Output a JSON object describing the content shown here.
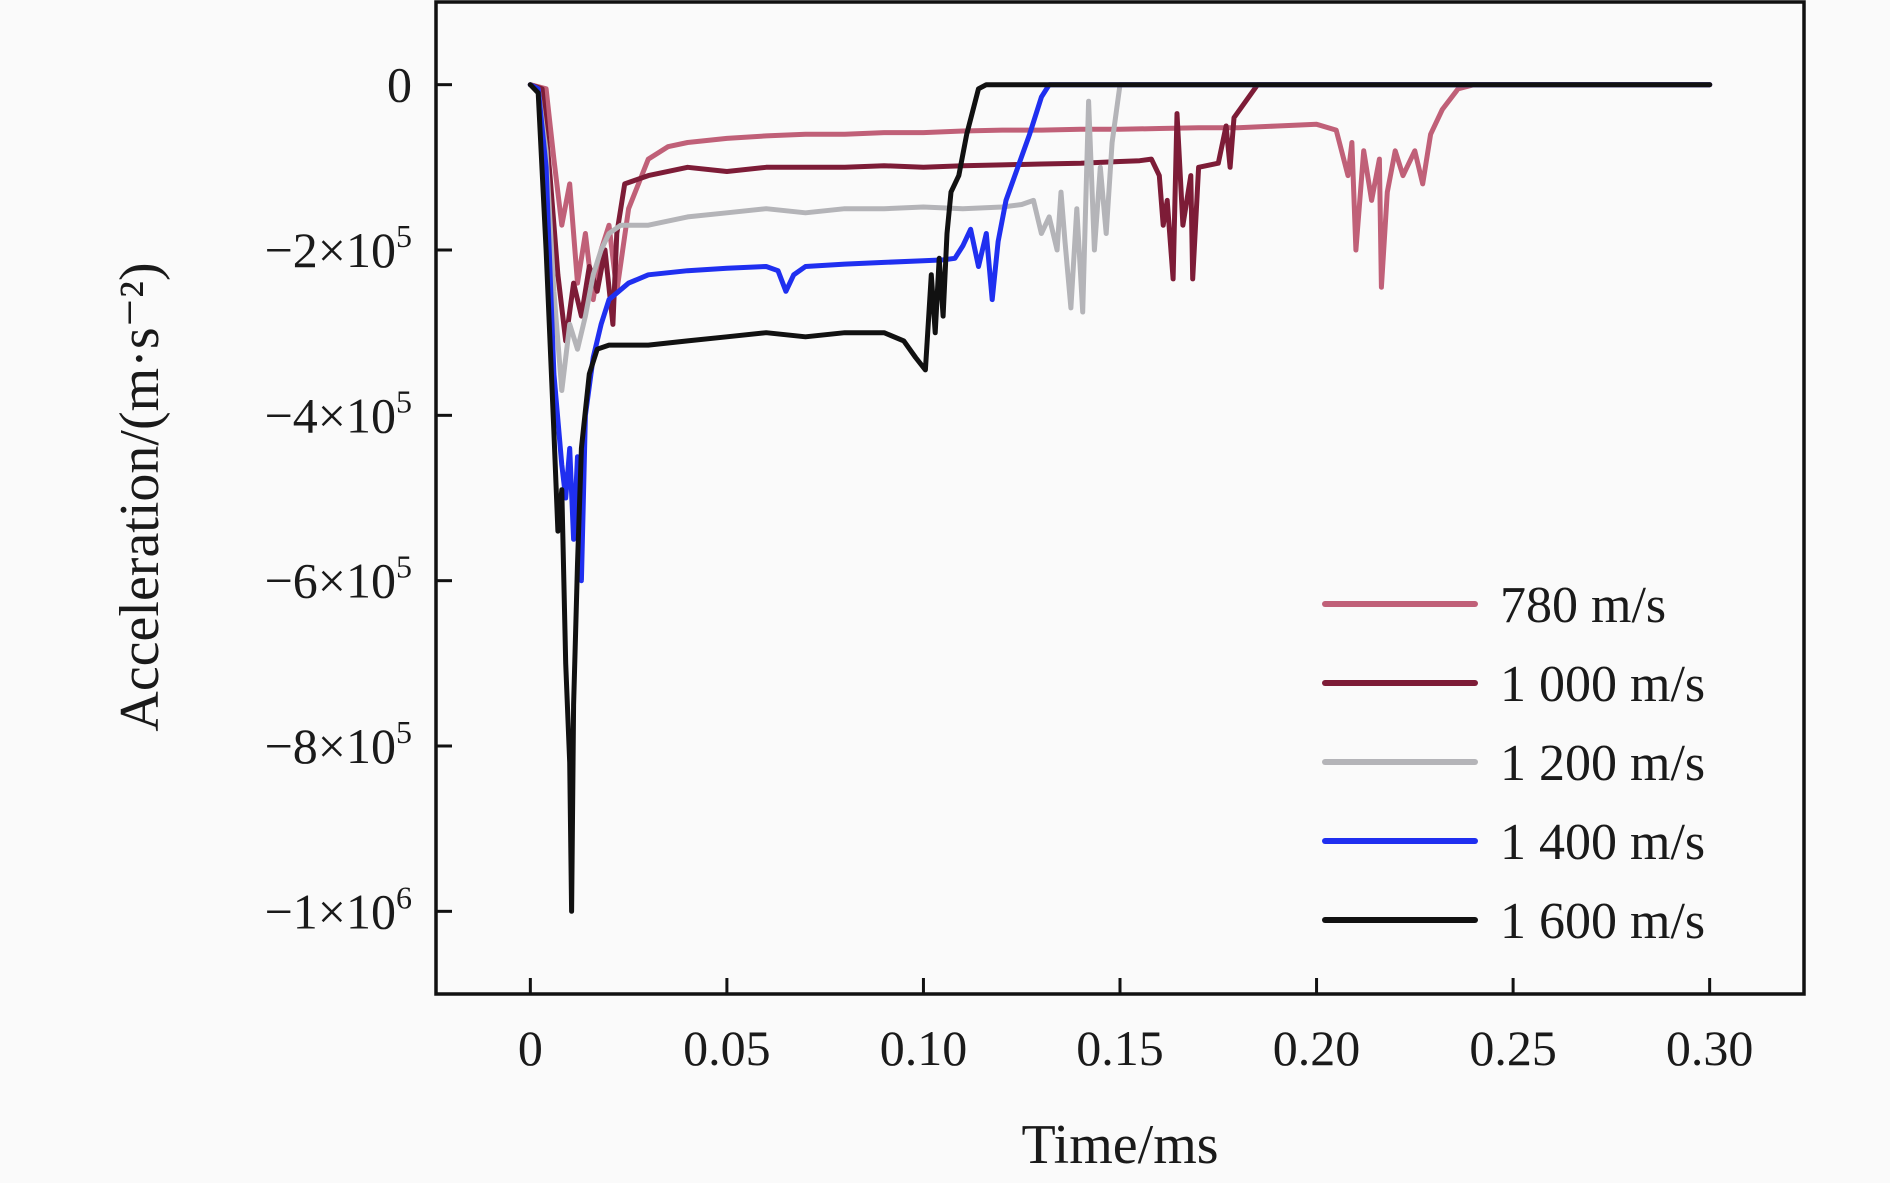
{
  "chart_data": {
    "type": "line",
    "xlabel": "Time/ms",
    "ylabel": "Acceleration/(m·s⁻²)",
    "xlim": [
      -0.024,
      0.324
    ],
    "ylim": [
      -1100000,
      100000
    ],
    "x_ticks": [
      {
        "value": 0,
        "label": "0"
      },
      {
        "value": 0.05,
        "label": "0.05"
      },
      {
        "value": 0.1,
        "label": "0.10"
      },
      {
        "value": 0.15,
        "label": "0.15"
      },
      {
        "value": 0.2,
        "label": "0.20"
      },
      {
        "value": 0.25,
        "label": "0.25"
      },
      {
        "value": 0.3,
        "label": "0.30"
      }
    ],
    "y_ticks": [
      {
        "value": 0,
        "label": "0"
      },
      {
        "value": -200000,
        "label": "−2×10",
        "exp": "5"
      },
      {
        "value": -400000,
        "label": "−4×10",
        "exp": "5"
      },
      {
        "value": -600000,
        "label": "−6×10",
        "exp": "5"
      },
      {
        "value": -800000,
        "label": "−8×10",
        "exp": "5"
      },
      {
        "value": -1000000,
        "label": "−1×10",
        "exp": "6"
      }
    ],
    "legend_position": "bottom-right",
    "grid": false,
    "series": [
      {
        "name": "780 m/s",
        "color": "#c06078",
        "points": [
          [
            0,
            0
          ],
          [
            0.004,
            -5000
          ],
          [
            0.006,
            -90000
          ],
          [
            0.008,
            -170000
          ],
          [
            0.01,
            -120000
          ],
          [
            0.012,
            -240000
          ],
          [
            0.014,
            -180000
          ],
          [
            0.016,
            -260000
          ],
          [
            0.018,
            -200000
          ],
          [
            0.02,
            -170000
          ],
          [
            0.022,
            -250000
          ],
          [
            0.025,
            -150000
          ],
          [
            0.03,
            -90000
          ],
          [
            0.035,
            -75000
          ],
          [
            0.04,
            -70000
          ],
          [
            0.05,
            -65000
          ],
          [
            0.06,
            -62000
          ],
          [
            0.07,
            -60000
          ],
          [
            0.08,
            -60000
          ],
          [
            0.09,
            -58000
          ],
          [
            0.1,
            -58000
          ],
          [
            0.11,
            -56000
          ],
          [
            0.12,
            -55000
          ],
          [
            0.13,
            -55000
          ],
          [
            0.14,
            -54000
          ],
          [
            0.15,
            -54000
          ],
          [
            0.16,
            -53000
          ],
          [
            0.17,
            -52000
          ],
          [
            0.18,
            -52000
          ],
          [
            0.19,
            -50000
          ],
          [
            0.2,
            -48000
          ],
          [
            0.205,
            -55000
          ],
          [
            0.208,
            -110000
          ],
          [
            0.209,
            -70000
          ],
          [
            0.21,
            -200000
          ],
          [
            0.212,
            -80000
          ],
          [
            0.214,
            -140000
          ],
          [
            0.216,
            -90000
          ],
          [
            0.2165,
            -245000
          ],
          [
            0.218,
            -130000
          ],
          [
            0.22,
            -80000
          ],
          [
            0.222,
            -110000
          ],
          [
            0.225,
            -80000
          ],
          [
            0.227,
            -120000
          ],
          [
            0.229,
            -60000
          ],
          [
            0.232,
            -30000
          ],
          [
            0.236,
            -5000
          ],
          [
            0.24,
            0
          ],
          [
            0.3,
            0
          ]
        ]
      },
      {
        "name": "1 000 m/s",
        "color": "#7d1c37",
        "points": [
          [
            0,
            0
          ],
          [
            0.003,
            -5000
          ],
          [
            0.005,
            -110000
          ],
          [
            0.007,
            -230000
          ],
          [
            0.009,
            -310000
          ],
          [
            0.011,
            -240000
          ],
          [
            0.013,
            -280000
          ],
          [
            0.015,
            -220000
          ],
          [
            0.017,
            -250000
          ],
          [
            0.019,
            -200000
          ],
          [
            0.021,
            -290000
          ],
          [
            0.022,
            -180000
          ],
          [
            0.024,
            -120000
          ],
          [
            0.03,
            -110000
          ],
          [
            0.04,
            -100000
          ],
          [
            0.05,
            -105000
          ],
          [
            0.06,
            -100000
          ],
          [
            0.07,
            -100000
          ],
          [
            0.08,
            -100000
          ],
          [
            0.09,
            -98000
          ],
          [
            0.1,
            -100000
          ],
          [
            0.11,
            -98000
          ],
          [
            0.12,
            -97000
          ],
          [
            0.13,
            -96000
          ],
          [
            0.14,
            -95000
          ],
          [
            0.15,
            -93000
          ],
          [
            0.155,
            -92000
          ],
          [
            0.158,
            -90000
          ],
          [
            0.16,
            -110000
          ],
          [
            0.161,
            -170000
          ],
          [
            0.162,
            -140000
          ],
          [
            0.1635,
            -235000
          ],
          [
            0.1645,
            -35000
          ],
          [
            0.166,
            -170000
          ],
          [
            0.168,
            -110000
          ],
          [
            0.1685,
            -235000
          ],
          [
            0.17,
            -100000
          ],
          [
            0.175,
            -95000
          ],
          [
            0.177,
            -50000
          ],
          [
            0.178,
            -100000
          ],
          [
            0.179,
            -40000
          ],
          [
            0.182,
            -20000
          ],
          [
            0.185,
            0
          ],
          [
            0.3,
            0
          ]
        ]
      },
      {
        "name": "1 200 m/s",
        "color": "#b4b4b8",
        "points": [
          [
            0,
            0
          ],
          [
            0.002,
            -5000
          ],
          [
            0.004,
            -80000
          ],
          [
            0.006,
            -250000
          ],
          [
            0.008,
            -370000
          ],
          [
            0.01,
            -290000
          ],
          [
            0.012,
            -320000
          ],
          [
            0.014,
            -280000
          ],
          [
            0.016,
            -230000
          ],
          [
            0.018,
            -200000
          ],
          [
            0.02,
            -180000
          ],
          [
            0.023,
            -170000
          ],
          [
            0.03,
            -170000
          ],
          [
            0.04,
            -160000
          ],
          [
            0.05,
            -155000
          ],
          [
            0.06,
            -150000
          ],
          [
            0.07,
            -155000
          ],
          [
            0.08,
            -150000
          ],
          [
            0.09,
            -150000
          ],
          [
            0.1,
            -148000
          ],
          [
            0.11,
            -150000
          ],
          [
            0.12,
            -148000
          ],
          [
            0.125,
            -145000
          ],
          [
            0.128,
            -140000
          ],
          [
            0.13,
            -180000
          ],
          [
            0.132,
            -160000
          ],
          [
            0.134,
            -200000
          ],
          [
            0.135,
            -130000
          ],
          [
            0.136,
            -190000
          ],
          [
            0.1375,
            -270000
          ],
          [
            0.139,
            -150000
          ],
          [
            0.1405,
            -275000
          ],
          [
            0.142,
            -20000
          ],
          [
            0.1435,
            -200000
          ],
          [
            0.145,
            -100000
          ],
          [
            0.1465,
            -180000
          ],
          [
            0.148,
            -70000
          ],
          [
            0.15,
            0
          ],
          [
            0.3,
            0
          ]
        ]
      },
      {
        "name": "1 400 m/s",
        "color": "#1f2ff0",
        "points": [
          [
            0,
            0
          ],
          [
            0.002,
            -5000
          ],
          [
            0.004,
            -100000
          ],
          [
            0.006,
            -350000
          ],
          [
            0.008,
            -460000
          ],
          [
            0.009,
            -500000
          ],
          [
            0.01,
            -440000
          ],
          [
            0.011,
            -550000
          ],
          [
            0.012,
            -450000
          ],
          [
            0.013,
            -600000
          ],
          [
            0.014,
            -400000
          ],
          [
            0.016,
            -330000
          ],
          [
            0.018,
            -290000
          ],
          [
            0.02,
            -260000
          ],
          [
            0.025,
            -240000
          ],
          [
            0.03,
            -230000
          ],
          [
            0.04,
            -225000
          ],
          [
            0.05,
            -222000
          ],
          [
            0.06,
            -220000
          ],
          [
            0.063,
            -225000
          ],
          [
            0.065,
            -250000
          ],
          [
            0.067,
            -230000
          ],
          [
            0.07,
            -220000
          ],
          [
            0.08,
            -217000
          ],
          [
            0.09,
            -215000
          ],
          [
            0.1,
            -213000
          ],
          [
            0.105,
            -212000
          ],
          [
            0.108,
            -210000
          ],
          [
            0.11,
            -195000
          ],
          [
            0.112,
            -175000
          ],
          [
            0.114,
            -220000
          ],
          [
            0.116,
            -180000
          ],
          [
            0.1175,
            -260000
          ],
          [
            0.119,
            -190000
          ],
          [
            0.121,
            -140000
          ],
          [
            0.124,
            -100000
          ],
          [
            0.127,
            -60000
          ],
          [
            0.13,
            -15000
          ],
          [
            0.132,
            0
          ],
          [
            0.3,
            0
          ]
        ]
      },
      {
        "name": "1 600 m/s",
        "color": "#111111",
        "points": [
          [
            0,
            0
          ],
          [
            0.002,
            -10000
          ],
          [
            0.004,
            -200000
          ],
          [
            0.006,
            -420000
          ],
          [
            0.007,
            -540000
          ],
          [
            0.008,
            -490000
          ],
          [
            0.009,
            -700000
          ],
          [
            0.01,
            -820000
          ],
          [
            0.0105,
            -1000000
          ],
          [
            0.011,
            -750000
          ],
          [
            0.012,
            -580000
          ],
          [
            0.013,
            -440000
          ],
          [
            0.015,
            -350000
          ],
          [
            0.017,
            -320000
          ],
          [
            0.02,
            -315000
          ],
          [
            0.03,
            -315000
          ],
          [
            0.04,
            -310000
          ],
          [
            0.05,
            -305000
          ],
          [
            0.06,
            -300000
          ],
          [
            0.07,
            -305000
          ],
          [
            0.08,
            -300000
          ],
          [
            0.09,
            -300000
          ],
          [
            0.095,
            -310000
          ],
          [
            0.098,
            -330000
          ],
          [
            0.1005,
            -345000
          ],
          [
            0.102,
            -230000
          ],
          [
            0.103,
            -300000
          ],
          [
            0.104,
            -210000
          ],
          [
            0.105,
            -280000
          ],
          [
            0.106,
            -180000
          ],
          [
            0.107,
            -130000
          ],
          [
            0.109,
            -110000
          ],
          [
            0.111,
            -60000
          ],
          [
            0.114,
            -5000
          ],
          [
            0.116,
            0
          ],
          [
            0.3,
            0
          ]
        ]
      }
    ]
  }
}
